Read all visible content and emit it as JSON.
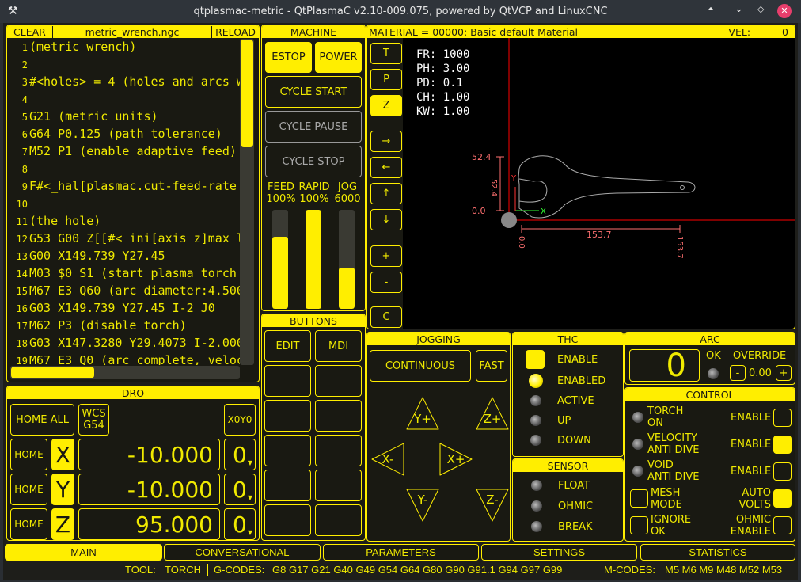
{
  "window": {
    "title": "qtplasmac-metric - QtPlasmaC v2.10-009.075, powered by QtVCP and LinuxCNC"
  },
  "gcode": {
    "clear": "CLEAR",
    "filename": "metric_wrench.ngc",
    "reload": "RELOAD",
    "lines": [
      {
        "n": "1",
        "t": "(metric wrench)"
      },
      {
        "n": "2",
        "t": ""
      },
      {
        "n": "3",
        "t": "#<holes> = 4 (holes and arcs w"
      },
      {
        "n": "4",
        "t": ""
      },
      {
        "n": "5",
        "t": "G21 (metric units)"
      },
      {
        "n": "6",
        "t": "G64 P0.125 (path tolerance)"
      },
      {
        "n": "7",
        "t": "M52 P1 (enable adaptive feed)"
      },
      {
        "n": "8",
        "t": ""
      },
      {
        "n": "9",
        "t": "F#<_hal[plasmac.cut-feed-rate"
      },
      {
        "n": "10",
        "t": ""
      },
      {
        "n": "11",
        "t": "(the hole)"
      },
      {
        "n": "12",
        "t": "G53 G00 Z[[#<_ini[axis_z]max_l"
      },
      {
        "n": "13",
        "t": "G00 X149.739 Y27.45"
      },
      {
        "n": "14",
        "t": "M03 $0 S1 (start plasma torch"
      },
      {
        "n": "15",
        "t": "M67 E3 Q60 (arc diameter:4.500"
      },
      {
        "n": "16",
        "t": "G03 X149.739 Y27.45 I-2 J0"
      },
      {
        "n": "17",
        "t": "M62 P3 (disable torch)"
      },
      {
        "n": "18",
        "t": "G03 X147.3280 Y29.4073 I-2.000"
      },
      {
        "n": "19",
        "t": "M67 E3 Q0 (arc complete, veloc"
      }
    ]
  },
  "dro": {
    "title": "DRO",
    "home_all": "HOME ALL",
    "wcs": "WCS\nG54",
    "x0y0": "X0Y0",
    "home": "HOME",
    "axes": [
      {
        "axis": "X",
        "value": "-10.000",
        "offset": "0"
      },
      {
        "axis": "Y",
        "value": "-10.000",
        "offset": "0"
      },
      {
        "axis": "Z",
        "value": "95.000",
        "offset": "0"
      }
    ]
  },
  "machine": {
    "title": "MACHINE",
    "estop": "ESTOP",
    "power": "POWER",
    "cycle_start": "CYCLE START",
    "cycle_pause": "CYCLE PAUSE",
    "cycle_stop": "CYCLE STOP",
    "feed_label": "FEED",
    "feed_value": "100%",
    "rapid_label": "RAPID",
    "rapid_value": "100%",
    "jog_label": "JOG",
    "jog_value": "6000",
    "feed_level": 0.73,
    "rapid_level": 1.0,
    "jog_level": 0.42
  },
  "buttons": {
    "title": "BUTTONS",
    "edit": "EDIT",
    "mdi": "MDI"
  },
  "preview": {
    "material": "MATERIAL =  00000: Basic default Material",
    "vel_label": "VEL:",
    "vel_value": "0",
    "side_buttons": [
      "T",
      "P",
      "Z",
      "→",
      "←",
      "↑",
      "↓",
      "+",
      "-",
      "C"
    ],
    "info": [
      "FR: 1000",
      "PH: 3.00",
      "PD: 0.1",
      "CH: 1.00",
      "KW: 1.00"
    ],
    "dims": {
      "y_max": "52.4",
      "y_len": "52.4",
      "y_min": "0.0",
      "x_min": "0.0",
      "x_len": "153.7",
      "x_max": "153.7",
      "x_axis": "X",
      "y_axis": "Y"
    }
  },
  "jogging": {
    "title": "JOGGING",
    "continuous": "CONTINUOUS",
    "fast": "FAST",
    "yplus": "Y+",
    "zplus": "Z+",
    "xminus": "X-",
    "xplus": "X+",
    "yminus": "Y-",
    "zminus": "Z-"
  },
  "thc": {
    "title": "THC",
    "enable": "ENABLE",
    "enabled": "ENABLED",
    "active": "ACTIVE",
    "up": "UP",
    "down": "DOWN"
  },
  "sensor": {
    "title": "SENSOR",
    "float": "FLOAT",
    "ohmic": "OHMIC",
    "break": "BREAK"
  },
  "arc": {
    "title": "ARC",
    "value": "0",
    "ok": "OK",
    "override": "OVERRIDE",
    "minus": "-",
    "override_value": "0.00",
    "plus": "+"
  },
  "control": {
    "title": "CONTROL",
    "torch_on": "TORCH\nON",
    "velocity": "VELOCITY\nANTI DIVE",
    "void": "VOID\nANTI DIVE",
    "enable": "ENABLE",
    "mesh": "MESH\nMODE",
    "auto_volts": "AUTO\nVOLTS",
    "ignore_ok": "IGNORE\nOK",
    "ohmic_enable": "OHMIC\nENABLE"
  },
  "tabs": [
    "MAIN",
    "CONVERSATIONAL",
    "PARAMETERS",
    "SETTINGS",
    "STATISTICS"
  ],
  "status": {
    "tool_label": "TOOL:",
    "tool": "TORCH",
    "gcodes_label": "G-CODES:",
    "gcodes": "G8 G17 G21 G40 G49 G54 G64 G80 G90 G91.1 G94 G97 G99",
    "mcodes_label": "M-CODES:",
    "mcodes": "M5 M6 M9 M48 M52 M53"
  },
  "colors": {
    "accent": "#ffee00",
    "panel": "#191912",
    "axis": "#ff0000",
    "dim": "#ff7070"
  }
}
